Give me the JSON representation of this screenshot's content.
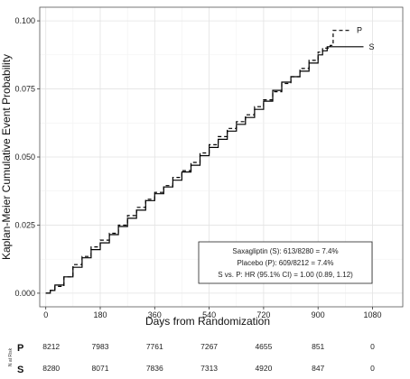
{
  "chart_data": {
    "type": "line",
    "title": "",
    "xlabel": "Days from Randomization",
    "ylabel": "Kaplan-Meier Cumulative Event Probability",
    "xlim": [
      -20,
      1180
    ],
    "ylim": [
      -0.005,
      0.105
    ],
    "xticks": [
      0,
      180,
      360,
      540,
      720,
      900,
      1080
    ],
    "xtick_labels": [
      "0",
      "180",
      "360",
      "540",
      "720",
      "900",
      "1080"
    ],
    "yticks": [
      0,
      0.025,
      0.05,
      0.075,
      0.1
    ],
    "ytick_labels": [
      "0.000",
      "0.025",
      "0.050",
      "0.075",
      "0.100"
    ],
    "grid": true,
    "series": [
      {
        "name": "S",
        "style": "solid",
        "x": [
          0,
          15,
          30,
          60,
          90,
          120,
          150,
          180,
          210,
          240,
          270,
          300,
          330,
          360,
          390,
          420,
          450,
          480,
          510,
          540,
          570,
          600,
          630,
          660,
          690,
          720,
          750,
          780,
          810,
          840,
          870,
          900,
          915,
          930,
          960,
          1050
        ],
        "y": [
          0,
          0.001,
          0.003,
          0.006,
          0.0095,
          0.013,
          0.016,
          0.0185,
          0.0215,
          0.0245,
          0.0275,
          0.0305,
          0.034,
          0.0365,
          0.039,
          0.0415,
          0.0445,
          0.047,
          0.0505,
          0.0535,
          0.0565,
          0.0595,
          0.062,
          0.0645,
          0.0675,
          0.0705,
          0.0745,
          0.0775,
          0.0795,
          0.0815,
          0.0845,
          0.0875,
          0.089,
          0.0905,
          0.0905,
          0.0905
        ]
      },
      {
        "name": "P",
        "style": "dashed",
        "x": [
          0,
          15,
          30,
          60,
          90,
          120,
          150,
          180,
          210,
          240,
          270,
          300,
          330,
          360,
          390,
          420,
          450,
          480,
          510,
          540,
          570,
          600,
          630,
          660,
          690,
          720,
          750,
          780,
          810,
          840,
          870,
          900,
          915,
          940,
          950,
          1010
        ],
        "y": [
          0,
          0.001,
          0.0025,
          0.006,
          0.0105,
          0.0135,
          0.017,
          0.0195,
          0.022,
          0.025,
          0.0285,
          0.0315,
          0.0345,
          0.037,
          0.0395,
          0.0425,
          0.045,
          0.048,
          0.0515,
          0.0545,
          0.0575,
          0.0605,
          0.063,
          0.0655,
          0.0685,
          0.071,
          0.074,
          0.077,
          0.0795,
          0.0825,
          0.0855,
          0.0885,
          0.09,
          0.091,
          0.0965,
          0.0965
        ]
      }
    ],
    "annotation": {
      "lines": [
        "Saxagliptin (S): 613/8280 = 7.4%",
        "Placebo (P): 609/8212 = 7.4%",
        "S vs. P: HR (95.1% CI) = 1.00 (0.89, 1.12)"
      ],
      "placement": "bottom-right"
    },
    "risk_table": {
      "title": "N at Risk",
      "rows": [
        {
          "label": "P",
          "values": [
            "8212",
            "7983",
            "7761",
            "7267",
            "4655",
            "851",
            "0"
          ]
        },
        {
          "label": "S",
          "values": [
            "8280",
            "8071",
            "7836",
            "7313",
            "4920",
            "847",
            "0"
          ]
        }
      ]
    }
  }
}
